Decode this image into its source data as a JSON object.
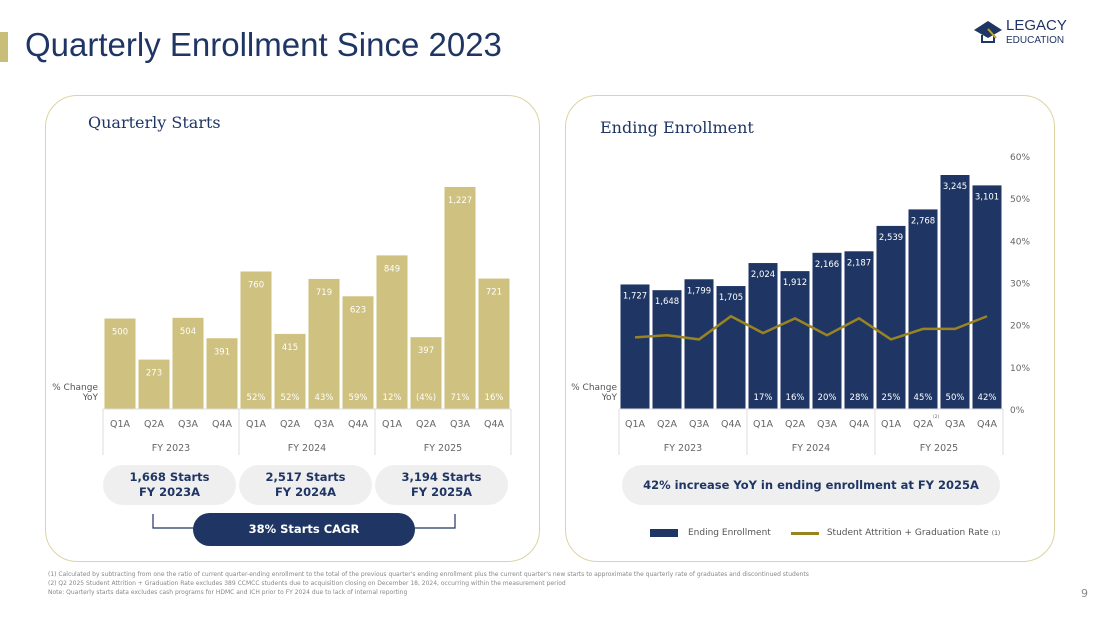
{
  "header": {
    "title": "Quarterly Enrollment Since 2023",
    "logo_text": "LEGACY EDUCATION",
    "page_number": "9"
  },
  "colors": {
    "navy": "#1f3664",
    "gold": "#cfc17f",
    "line": "#9a8420",
    "panel_border": "#ddd3a3"
  },
  "chart_data": [
    {
      "type": "bar",
      "title": "Quarterly Starts",
      "categories": [
        "Q1A",
        "Q2A",
        "Q3A",
        "Q4A",
        "Q1A",
        "Q2A",
        "Q3A",
        "Q4A",
        "Q1A",
        "Q2A",
        "Q3A",
        "Q4A"
      ],
      "groups": [
        "FY 2023",
        "FY 2024",
        "FY 2025"
      ],
      "values": [
        500,
        273,
        504,
        391,
        760,
        415,
        719,
        623,
        849,
        397,
        1227,
        721
      ],
      "value_labels": [
        "500",
        "273",
        "504",
        "391",
        "760",
        "415",
        "719",
        "623",
        "849",
        "397",
        "1,227",
        "721"
      ],
      "yoy_label": "% Change YoY",
      "yoy": [
        "",
        "",
        "",
        "",
        "52%",
        "52%",
        "43%",
        "59%",
        "12%",
        "(4%)",
        "71%",
        "16%"
      ]
    },
    {
      "type": "bar+line",
      "title": "Ending Enrollment",
      "categories": [
        "Q1A",
        "Q2A",
        "Q3A",
        "Q4A",
        "Q1A",
        "Q2A",
        "Q3A",
        "Q4A",
        "Q1A",
        "Q2A",
        "Q3A",
        "Q4A"
      ],
      "category_footnotes": [
        "",
        "",
        "",
        "",
        "",
        "",
        "",
        "",
        "",
        "(2)",
        "",
        ""
      ],
      "groups": [
        "FY 2023",
        "FY 2024",
        "FY 2025"
      ],
      "series": [
        {
          "name": "Ending Enrollment",
          "values": [
            1727,
            1648,
            1799,
            1705,
            2024,
            1912,
            2166,
            2187,
            2539,
            2768,
            3245,
            3101
          ],
          "value_labels": [
            "1,727",
            "1,648",
            "1,799",
            "1,705",
            "2,024",
            "1,912",
            "2,166",
            "2,187",
            "2,539",
            "2,768",
            "3,245",
            "3,101"
          ]
        },
        {
          "name": "Student Attrition + Graduation Rate",
          "footnote": "(1)",
          "axis": "right",
          "values": [
            17,
            17.5,
            16.5,
            22,
            18,
            21.5,
            17.5,
            21.5,
            16.5,
            19,
            19,
            22
          ]
        }
      ],
      "y2_ticks": [
        "0%",
        "10%",
        "20%",
        "30%",
        "40%",
        "50%",
        "60%"
      ],
      "y2lim": [
        0,
        60
      ],
      "yoy_label": "% Change YoY",
      "yoy": [
        "",
        "",
        "",
        "",
        "17%",
        "16%",
        "20%",
        "28%",
        "25%",
        "45%",
        "50%",
        "42%"
      ],
      "legend_placement": "bottom"
    }
  ],
  "starts_summary": [
    {
      "line1": "1,668 Starts",
      "line2": "FY 2023A"
    },
    {
      "line1": "2,517 Starts",
      "line2": "FY 2024A"
    },
    {
      "line1": "3,194 Starts",
      "line2": "FY 2025A"
    }
  ],
  "cagr": "38% Starts CAGR",
  "enrollment_callout": "42% increase YoY in ending enrollment at FY 2025A",
  "footnotes": [
    "(1)      Calculated by subtracting from one the ratio of current quarter-ending enrollment to the total of the previous quarter's ending enrollment plus the current quarter's new starts to approximate the quarterly rate of graduates and discontinued students",
    "(2)      Q2 2025 Student Attrition + Graduation Rate excludes 389 CCMCC students due to acquisition closing on December 18, 2024, occurring within the measurement period",
    "Note: Quarterly starts data excludes cash programs for HDMC and ICH prior to FY 2024 due to lack of internal reporting"
  ]
}
